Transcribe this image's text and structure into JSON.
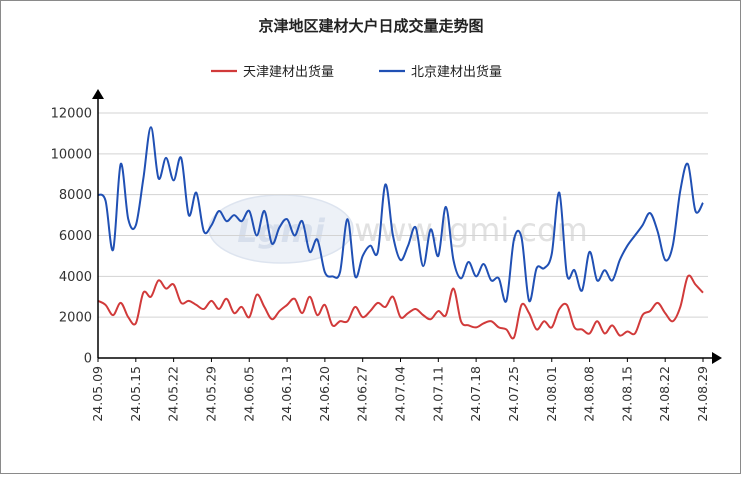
{
  "chart_data": {
    "type": "line",
    "title": "京津地区建材大户日成交量走势图",
    "watermark": "www.lgmi.com",
    "xlabel": "",
    "ylabel": "",
    "ylim": [
      0,
      12000
    ],
    "yticks": [
      0,
      2000,
      4000,
      6000,
      8000,
      10000,
      12000
    ],
    "grid": true,
    "legend_position": "top-center",
    "x_tick_labels": [
      "24.05.09",
      "24.05.15",
      "24.05.22",
      "24.05.29",
      "24.06.05",
      "24.06.13",
      "24.06.20",
      "24.06.27",
      "24.07.04",
      "24.07.11",
      "24.07.18",
      "24.07.25",
      "24.08.01",
      "24.08.08",
      "24.08.15",
      "24.08.22",
      "24.08.29"
    ],
    "x_tick_every": 5,
    "series": [
      {
        "name": "天津建材出货量",
        "color": "#d13a3a",
        "values": [
          2800,
          2600,
          2100,
          2700,
          2000,
          1700,
          3200,
          3000,
          3800,
          3400,
          3600,
          2700,
          2800,
          2600,
          2400,
          2800,
          2400,
          2900,
          2200,
          2500,
          2000,
          3100,
          2500,
          1900,
          2300,
          2600,
          2900,
          2200,
          3000,
          2100,
          2600,
          1600,
          1800,
          1800,
          2500,
          2000,
          2300,
          2700,
          2500,
          3000,
          2000,
          2200,
          2400,
          2100,
          1900,
          2300,
          2100,
          3400,
          1800,
          1600,
          1500,
          1700,
          1800,
          1500,
          1400,
          1000,
          2600,
          2200,
          1400,
          1800,
          1500,
          2400,
          2600,
          1500,
          1400,
          1200,
          1800,
          1200,
          1600,
          1100,
          1300,
          1200,
          2100,
          2300,
          2700,
          2200,
          1800,
          2500,
          4000,
          3600,
          3200
        ]
      },
      {
        "name": "北京建材出货量",
        "color": "#2050b4",
        "values": [
          8000,
          7700,
          5300,
          9500,
          6800,
          6500,
          8800,
          11300,
          8800,
          9800,
          8700,
          9800,
          7000,
          8100,
          6200,
          6500,
          7200,
          6700,
          7000,
          6700,
          7200,
          6000,
          7200,
          5600,
          6400,
          6800,
          6000,
          6700,
          5200,
          5800,
          4200,
          4000,
          4200,
          6800,
          4000,
          5000,
          5500,
          5200,
          8500,
          6000,
          4800,
          5500,
          6400,
          4500,
          6300,
          5000,
          7400,
          4800,
          3900,
          4700,
          4000,
          4600,
          3800,
          3900,
          2800,
          5800,
          5900,
          2800,
          4400,
          4400,
          5100,
          8100,
          4100,
          4300,
          3300,
          5200,
          3800,
          4300,
          3800,
          4800,
          5500,
          6000,
          6500,
          7100,
          6200,
          4800,
          5500,
          8200,
          9500,
          7200,
          7600
        ]
      }
    ]
  }
}
